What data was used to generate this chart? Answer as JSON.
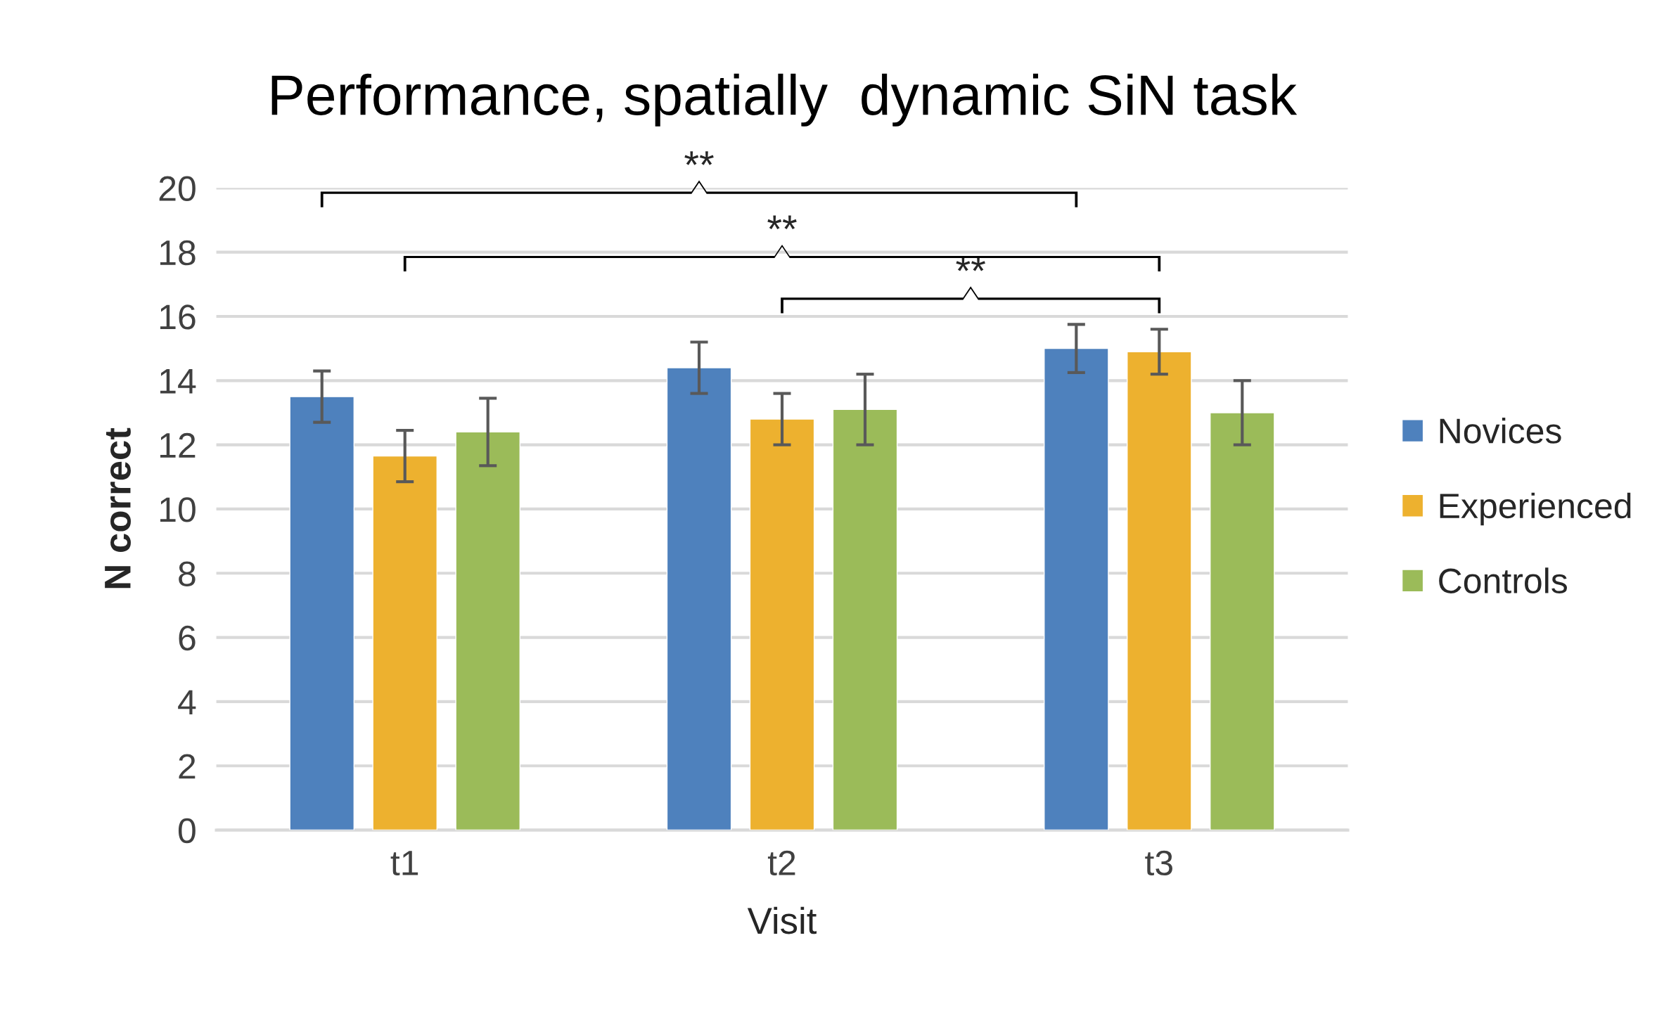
{
  "chart_data": {
    "type": "bar",
    "title": "Performance, spatially  dynamic SiN task",
    "xlabel": "Visit",
    "ylabel": "N correct",
    "categories": [
      "t1",
      "t2",
      "t3"
    ],
    "series": [
      {
        "name": "Novices",
        "color": "#4e81bd",
        "values": [
          13.5,
          14.4,
          15.0
        ],
        "errors": [
          0.8,
          0.8,
          0.75
        ]
      },
      {
        "name": "Experienced",
        "color": "#edb12f",
        "values": [
          11.65,
          12.8,
          14.9
        ],
        "errors": [
          0.8,
          0.8,
          0.7
        ]
      },
      {
        "name": "Controls",
        "color": "#9bbb59",
        "values": [
          12.4,
          13.1,
          13.0
        ],
        "errors": [
          1.05,
          1.1,
          1.0
        ]
      }
    ],
    "ylim": [
      0,
      20
    ],
    "yticks": [
      0,
      2,
      4,
      6,
      8,
      10,
      12,
      14,
      16,
      18,
      20
    ],
    "grid": "y",
    "legend": "right",
    "annotations": [
      "**",
      "**",
      "**"
    ]
  }
}
